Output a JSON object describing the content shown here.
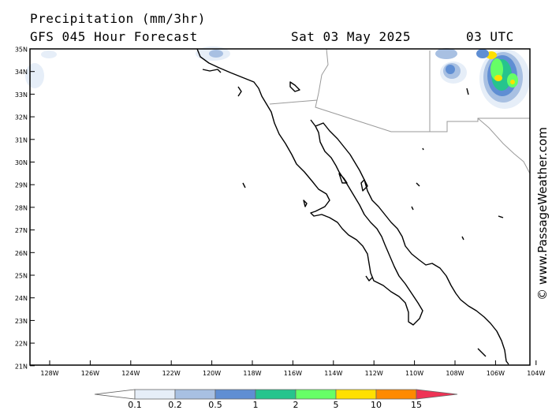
{
  "header": {
    "title": "Precipitation (mm/3hr)",
    "subtitle": "GFS 045 Hour Forecast",
    "date": "Sat 03 May 2025",
    "time": "03 UTC"
  },
  "watermark": "© www.PassageWeather.com",
  "map": {
    "lat_labels": [
      "35N",
      "34N",
      "33N",
      "32N",
      "31N",
      "30N",
      "29N",
      "28N",
      "27N",
      "26N",
      "25N",
      "24N",
      "23N",
      "22N",
      "21N"
    ],
    "lon_labels": [
      "128W",
      "126W",
      "124W",
      "122W",
      "120W",
      "118W",
      "116W",
      "114W",
      "112W",
      "110W",
      "108W",
      "106W",
      "104W"
    ],
    "lat_range": [
      21,
      35
    ],
    "lon_range": [
      -129,
      -104
    ]
  },
  "legend": {
    "ticks": [
      "0.1",
      "0.2",
      "0.5",
      "1",
      "2",
      "5",
      "10",
      "15"
    ],
    "colors": [
      "#e6eef8",
      "#a8c0e2",
      "#5f8ed3",
      "#26c48d",
      "#66ff66",
      "#ffe000",
      "#ff8a00",
      "#ee3355"
    ]
  }
}
